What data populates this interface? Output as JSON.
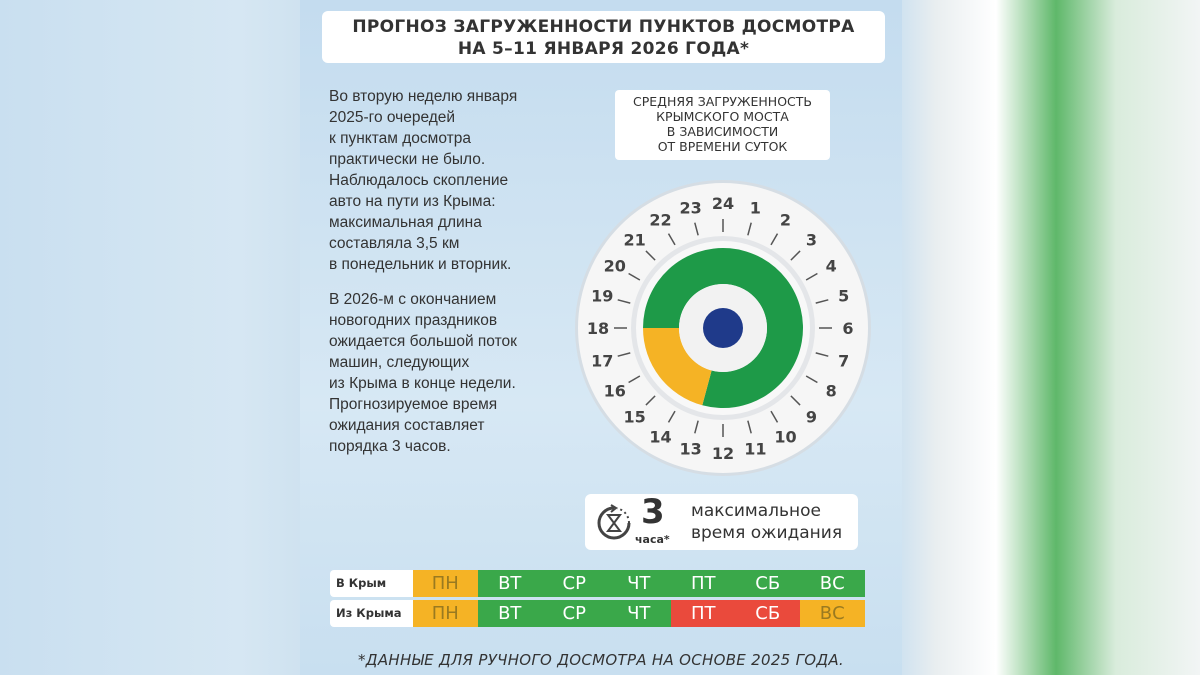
{
  "title": "ПРОГНОЗ ЗАГРУЖЕННОСТИ ПУНКТОВ ДОСМОТРА\nНА 5–11 ЯНВАРЯ 2026 ГОДА*",
  "title_line1": "ПРОГНОЗ ЗАГРУЖЕННОСТИ ПУНКТОВ ДОСМОТРА",
  "title_line2": "НА 5–11 ЯНВАРЯ 2026 ГОДА*",
  "paragraphs": [
    "Во вторую неделю января\n2025-го очередей\nк пунктам досмотра\nпрактически не было.\nНаблюдалось скопление\nавто на пути из Крыма:\nмаксимальная длина\nсоставляла 3,5 км\nв понедельник и вторник.",
    "В 2026-м с окончанием\nновогодних праздников\nожидается большой поток\nмашин, следующих\nиз Крыма в конце недели.\nПрогнозируемое время\nожидания составляет\nпорядка 3 часов."
  ],
  "clock": {
    "caption": "СРЕДНЯЯ ЗАГРУЖЕННОСТЬ\nКРЫМСКОГО МОСТА\nВ ЗАВИСИМОСТИ\nОТ ВРЕМЕНИ СУТОК",
    "hours": [
      "24",
      "1",
      "2",
      "3",
      "4",
      "5",
      "6",
      "7",
      "8",
      "9",
      "10",
      "11",
      "12",
      "13",
      "14",
      "15",
      "16",
      "17",
      "18",
      "19",
      "20",
      "21",
      "22",
      "23"
    ],
    "segments": [
      {
        "from_hour": 18,
        "to_hour": 37,
        "level": "low",
        "color": "#1e9a48"
      },
      {
        "from_hour": 13,
        "to_hour": 18,
        "level": "medium",
        "color": "#f5b325"
      }
    ],
    "center_color": "#1f3a8a"
  },
  "wait": {
    "value": "3",
    "unit": "часа*",
    "label": "максимальное\nвремя ожидания",
    "icon": "hourglass-refresh-icon"
  },
  "schedule": {
    "days": [
      "ПН",
      "ВТ",
      "СР",
      "ЧТ",
      "ПТ",
      "СБ",
      "ВС"
    ],
    "rows": [
      {
        "label": "В Крым",
        "levels": [
          "medium",
          "low",
          "low",
          "low",
          "low",
          "low",
          "low"
        ]
      },
      {
        "label": "Из Крыма",
        "levels": [
          "medium",
          "low",
          "low",
          "low",
          "high",
          "high",
          "medium"
        ]
      }
    ],
    "colors": {
      "low": "#3aa84a",
      "medium": "#f5b325",
      "high": "#ea4a3c"
    }
  },
  "footnote": "*ДАННЫЕ ДЛЯ РУЧНОГО ДОСМОТРА НА ОСНОВЕ 2025 ГОДА."
}
